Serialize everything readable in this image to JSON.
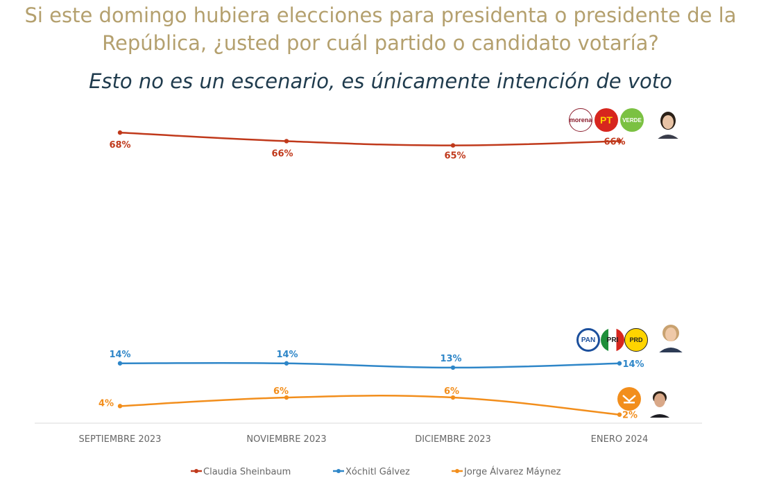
{
  "title": "Si este domingo hubiera elecciones para presidenta o presidente de la República, ¿usted por cuál partido o candidato votaría?",
  "subtitle": "Esto no es un escenario, es únicamente intención de voto",
  "chart_data": {
    "type": "line",
    "categories": [
      "SEPTIEMBRE 2023",
      "NOVIEMBRE 2023",
      "DICIEMBRE 2023",
      "ENERO 2024"
    ],
    "series": [
      {
        "name": "Claudia Sheinbaum",
        "values": [
          68,
          66,
          65,
          66
        ],
        "labels": [
          "68%",
          "66%",
          "65%",
          "66%"
        ],
        "color": "#c0391b"
      },
      {
        "name": "Xóchitl Gálvez",
        "values": [
          14,
          14,
          13,
          14
        ],
        "labels": [
          "14%",
          "14%",
          "13%",
          "14%"
        ],
        "color": "#2e86c8"
      },
      {
        "name": "Jorge Álvarez Máynez",
        "values": [
          4,
          6,
          6,
          2
        ],
        "labels": [
          "4%",
          "6%",
          "6%",
          "2%"
        ],
        "color": "#f28e1c"
      }
    ],
    "ylim": [
      0,
      70
    ],
    "grid": false,
    "legend_position": "bottom"
  },
  "party_logos": {
    "morena": "morena",
    "pt": "PT",
    "verde": "VERDE",
    "pan": "PAN",
    "pri": "PRI",
    "prd": "PRD"
  },
  "colors": {
    "title": "#b4a06e",
    "subtitle": "#1f3b4d",
    "axis_text": "#666666"
  }
}
